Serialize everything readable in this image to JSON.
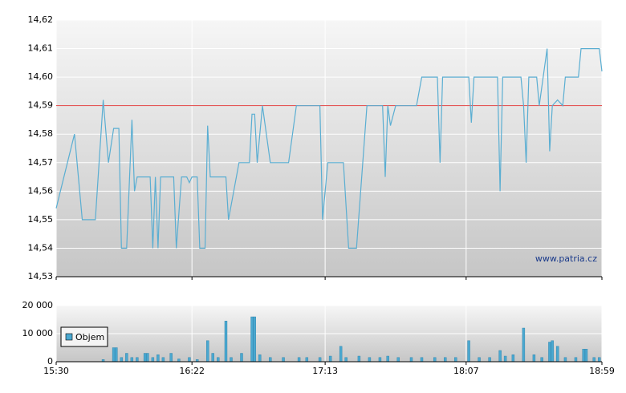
{
  "chart_data": [
    {
      "type": "line",
      "xlim": [
        "15:30",
        "18:59"
      ],
      "xticks": [
        "15:30",
        "16:22",
        "17:13",
        "18:07",
        "18:59"
      ],
      "ylim": [
        14.53,
        14.62
      ],
      "yticks": [
        {
          "value": 14.53,
          "label": "14,53"
        },
        {
          "value": 14.54,
          "label": "14,54"
        },
        {
          "value": 14.55,
          "label": "14,55"
        },
        {
          "value": 14.56,
          "label": "14,56"
        },
        {
          "value": 14.57,
          "label": "14,57"
        },
        {
          "value": 14.58,
          "label": "14,58"
        },
        {
          "value": 14.59,
          "label": "14,59"
        },
        {
          "value": 14.6,
          "label": "14,60"
        },
        {
          "value": 14.61,
          "label": "14,61"
        },
        {
          "value": 14.62,
          "label": "14,62"
        }
      ],
      "grid": true,
      "reference_line": {
        "value": 14.59,
        "color": "#e04040"
      },
      "watermark": "www.patria.cz",
      "x": [
        "15:30",
        "15:37",
        "15:40",
        "15:45",
        "15:48",
        "15:50",
        "15:52",
        "15:54",
        "15:55",
        "15:57",
        "15:59",
        "16:00",
        "16:01",
        "16:06",
        "16:07",
        "16:08",
        "16:09",
        "16:10",
        "16:15",
        "16:16",
        "16:18",
        "16:20",
        "16:21",
        "16:22",
        "16:24",
        "16:25",
        "16:27",
        "16:28",
        "16:29",
        "16:35",
        "16:36",
        "16:40",
        "16:44",
        "16:45",
        "16:46",
        "16:47",
        "16:49",
        "16:52",
        "16:59",
        "17:02",
        "17:11",
        "17:12",
        "17:14",
        "17:20",
        "17:22",
        "17:25",
        "17:29",
        "17:35",
        "17:36",
        "17:37",
        "17:38",
        "17:40",
        "17:48",
        "17:50",
        "17:56",
        "17:57",
        "17:58",
        "18:08",
        "18:09",
        "18:10",
        "18:19",
        "18:20",
        "18:21",
        "18:28",
        "18:29",
        "18:30",
        "18:31",
        "18:34",
        "18:35",
        "18:38",
        "18:39",
        "18:40",
        "18:42",
        "18:44",
        "18:45",
        "18:50",
        "18:51",
        "18:58",
        "18:59"
      ],
      "series": [
        {
          "color": "#5aaed2",
          "values": [
            14.554,
            14.58,
            14.55,
            14.55,
            14.592,
            14.57,
            14.582,
            14.582,
            14.54,
            14.54,
            14.585,
            14.56,
            14.565,
            14.565,
            14.54,
            14.565,
            14.54,
            14.565,
            14.565,
            14.54,
            14.565,
            14.565,
            14.563,
            14.565,
            14.565,
            14.54,
            14.54,
            14.583,
            14.565,
            14.565,
            14.55,
            14.57,
            14.57,
            14.587,
            14.587,
            14.57,
            14.59,
            14.57,
            14.57,
            14.59,
            14.59,
            14.55,
            14.57,
            14.57,
            14.54,
            14.54,
            14.59,
            14.59,
            14.565,
            14.59,
            14.583,
            14.59,
            14.59,
            14.6,
            14.6,
            14.57,
            14.6,
            14.6,
            14.584,
            14.6,
            14.6,
            14.56,
            14.6,
            14.6,
            14.59,
            14.57,
            14.6,
            14.6,
            14.59,
            14.61,
            14.574,
            14.59,
            14.592,
            14.59,
            14.6,
            14.6,
            14.61,
            14.61,
            14.602
          ]
        }
      ]
    },
    {
      "type": "bar",
      "xlim": [
        "15:30",
        "18:59"
      ],
      "xticks": [
        "15:30",
        "16:22",
        "17:13",
        "18:07",
        "18:59"
      ],
      "ylim": [
        0,
        20000
      ],
      "yticks": [
        0,
        {
          "value": 10000,
          "label": "10 000"
        },
        {
          "value": 20000,
          "label": "20 000"
        }
      ],
      "grid": true,
      "legend": "top-left",
      "x": [
        "15:48",
        "15:52",
        "15:53",
        "15:55",
        "15:57",
        "15:59",
        "16:01",
        "16:04",
        "16:05",
        "16:07",
        "16:09",
        "16:11",
        "16:14",
        "16:17",
        "16:21",
        "16:24",
        "16:28",
        "16:30",
        "16:32",
        "16:35",
        "16:37",
        "16:41",
        "16:45",
        "16:46",
        "16:48",
        "16:52",
        "16:57",
        "17:03",
        "17:06",
        "17:11",
        "17:15",
        "17:19",
        "17:21",
        "17:26",
        "17:30",
        "17:34",
        "17:37",
        "17:41",
        "17:46",
        "17:50",
        "17:55",
        "17:59",
        "18:03",
        "18:08",
        "18:12",
        "18:16",
        "18:20",
        "18:22",
        "18:25",
        "18:29",
        "18:33",
        "18:36",
        "18:39",
        "18:40",
        "18:42",
        "18:45",
        "18:49",
        "18:52",
        "18:53",
        "18:56",
        "18:58"
      ],
      "series": [
        {
          "name": "Objem",
          "color": "#4aa8d0",
          "values": [
            800,
            5000,
            5000,
            1500,
            3000,
            1500,
            1500,
            3000,
            3000,
            1500,
            2500,
            1500,
            3000,
            1000,
            1500,
            800,
            7500,
            3000,
            1500,
            14500,
            1500,
            3000,
            16000,
            16000,
            2500,
            1500,
            1500,
            1500,
            1500,
            1500,
            2000,
            5500,
            1500,
            2000,
            1500,
            1500,
            2000,
            1500,
            1500,
            1500,
            1500,
            1500,
            1500,
            7500,
            1500,
            1500,
            4000,
            2000,
            2500,
            12000,
            2500,
            1500,
            7000,
            7500,
            5500,
            1500,
            1500,
            4500,
            4500,
            1500,
            1500
          ]
        }
      ]
    }
  ]
}
